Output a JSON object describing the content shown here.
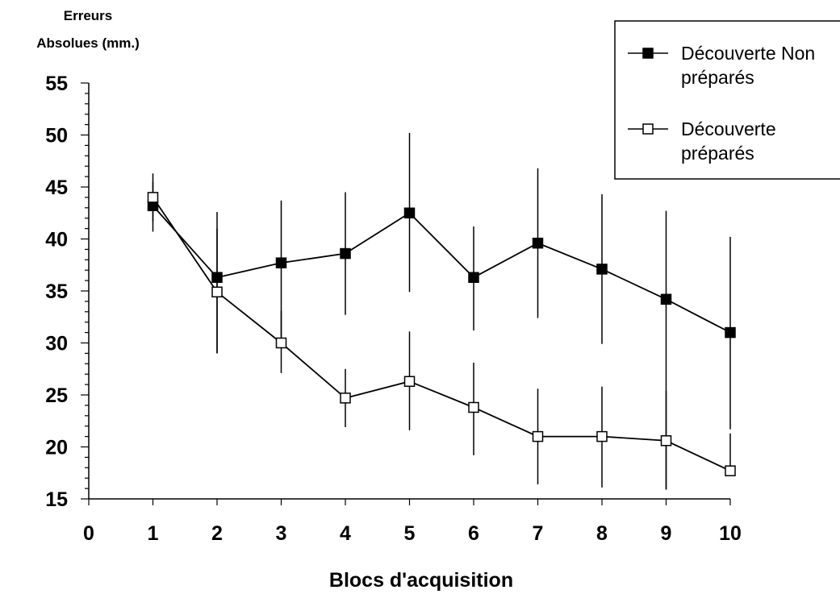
{
  "chart_data": {
    "type": "line",
    "ylabel_line1": "Erreurs",
    "ylabel_line2": "Absolues (mm.)",
    "xlabel": "Blocs d'acquisition",
    "xlim": [
      0,
      10
    ],
    "ylim": [
      15,
      55
    ],
    "xticks": [
      0,
      1,
      2,
      3,
      4,
      5,
      6,
      7,
      8,
      9,
      10
    ],
    "yticks": [
      15,
      20,
      25,
      30,
      35,
      40,
      45,
      50,
      55
    ],
    "x": [
      1,
      2,
      3,
      4,
      5,
      6,
      7,
      8,
      9,
      10
    ],
    "legend_position": "top-right",
    "grid": false,
    "series": [
      {
        "name_line1": "Découverte Non",
        "name_line2": "préparés",
        "marker": "filled-square",
        "color": "#000000",
        "values": [
          43.2,
          36.3,
          37.7,
          38.6,
          42.5,
          36.3,
          39.6,
          37.1,
          34.2,
          31.0
        ],
        "error_low": [
          40.7,
          29.0,
          30.6,
          32.7,
          34.9,
          31.2,
          32.4,
          29.9,
          15.9,
          21.7
        ],
        "error_high": [
          46.3,
          42.6,
          43.7,
          44.5,
          50.2,
          41.2,
          46.8,
          44.3,
          42.7,
          40.2
        ]
      },
      {
        "name_line1": "Découverte",
        "name_line2": "préparés",
        "marker": "open-square",
        "color": "#000000",
        "values": [
          44.0,
          34.9,
          30.0,
          24.7,
          26.3,
          23.8,
          21.0,
          21.0,
          20.6,
          17.7
        ],
        "error_low": [
          41.7,
          29.0,
          27.1,
          21.9,
          21.6,
          19.2,
          16.4,
          16.1,
          15.9,
          17.7
        ],
        "error_high": [
          45.5,
          41.0,
          33.1,
          27.5,
          31.1,
          28.1,
          25.6,
          25.8,
          25.4,
          21.3
        ]
      }
    ]
  }
}
